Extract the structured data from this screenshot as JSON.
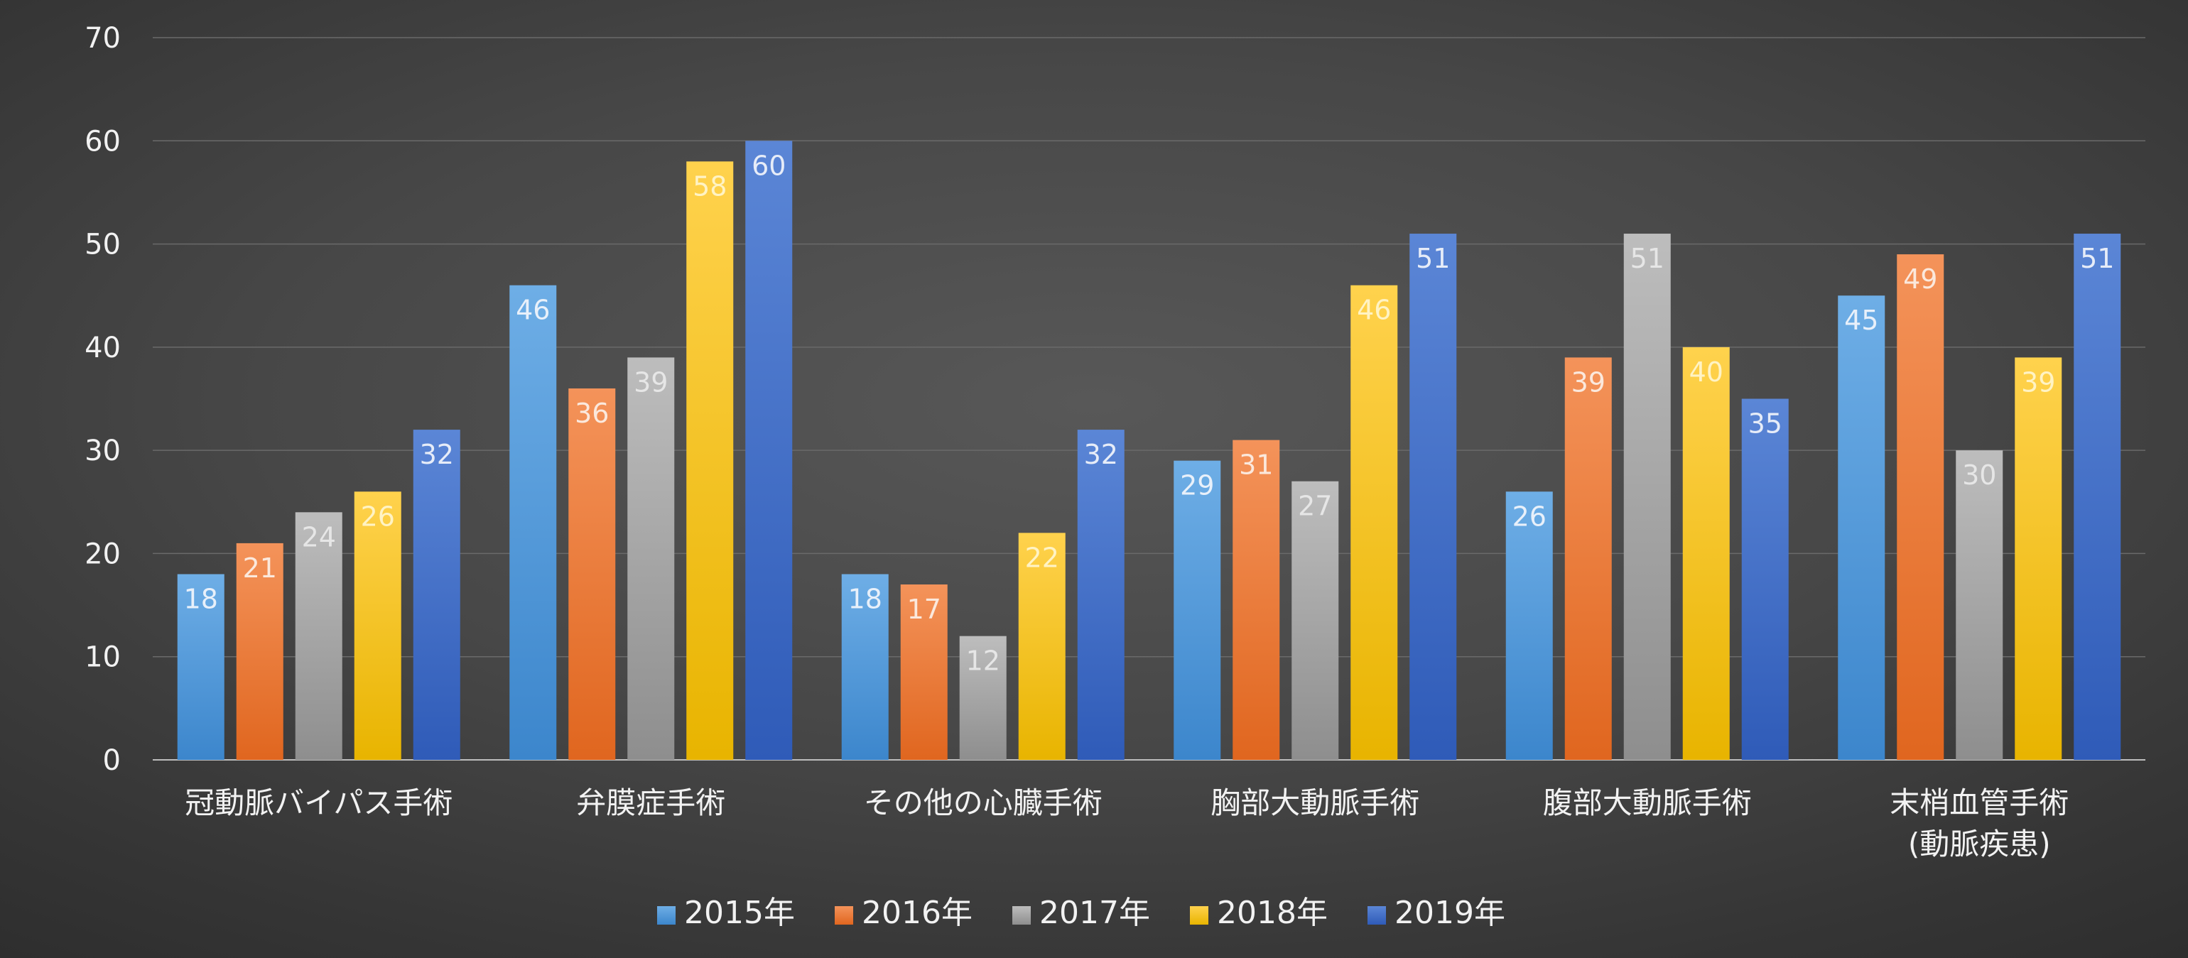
{
  "chart_data": {
    "type": "bar",
    "title": "",
    "xlabel": "",
    "ylabel": "",
    "ylim": [
      0,
      70
    ],
    "yticks": [
      0,
      10,
      20,
      30,
      40,
      50,
      60,
      70
    ],
    "grid": true,
    "legend_position": "bottom",
    "data_labels": true,
    "categories": [
      [
        "冠動脈バイパス手術"
      ],
      [
        "弁膜症手術"
      ],
      [
        "その他の心臓手術"
      ],
      [
        "胸部大動脈手術"
      ],
      [
        "腹部大動脈手術"
      ],
      [
        "末梢血管手術",
        "(動脈疾患)"
      ]
    ],
    "series": [
      {
        "name": "2015年",
        "values": [
          18,
          46,
          18,
          29,
          26,
          45
        ],
        "color_top": "#6eaee6",
        "color_bottom": "#3c86cc",
        "label_color": "#e8f0fa"
      },
      {
        "name": "2016年",
        "values": [
          21,
          36,
          17,
          31,
          39,
          49
        ],
        "color_top": "#f4935a",
        "color_bottom": "#e0661f",
        "label_color": "#fbe8dc"
      },
      {
        "name": "2017年",
        "values": [
          24,
          39,
          12,
          27,
          51,
          30
        ],
        "color_top": "#bdbdbd",
        "color_bottom": "#8e8e8e",
        "label_color": "#e6e6e6"
      },
      {
        "name": "2018年",
        "values": [
          26,
          58,
          22,
          46,
          40,
          39
        ],
        "color_top": "#ffd24d",
        "color_bottom": "#e8b400",
        "label_color": "#fff3c4"
      },
      {
        "name": "2019年",
        "values": [
          32,
          60,
          32,
          51,
          35,
          51
        ],
        "color_top": "#5b86d6",
        "color_bottom": "#2f5bb8",
        "label_color": "#e6ecf8"
      }
    ]
  }
}
